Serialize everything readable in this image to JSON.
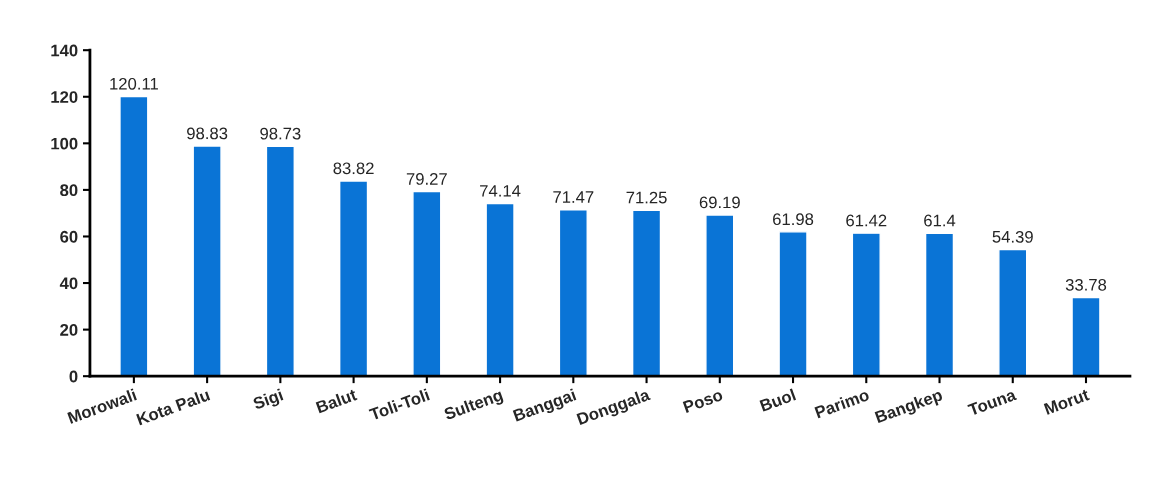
{
  "chart_data": {
    "type": "bar",
    "categories": [
      "Morowali",
      "Kota Palu",
      "Sigi",
      "Balut",
      "Toli-Toli",
      "Sulteng",
      "Banggai",
      "Donggala",
      "Poso",
      "Buol",
      "Parimo",
      "Bangkep",
      "Touna",
      "Morut"
    ],
    "values": [
      120.11,
      98.83,
      98.73,
      83.82,
      79.27,
      74.14,
      71.47,
      71.25,
      69.19,
      61.98,
      61.42,
      61.4,
      54.39,
      33.78
    ],
    "color": "#0a74d6",
    "ylim": [
      0,
      140
    ],
    "yticks": [
      0,
      20,
      40,
      60,
      80,
      100,
      120,
      140
    ],
    "data_labels": true,
    "grid": false
  }
}
